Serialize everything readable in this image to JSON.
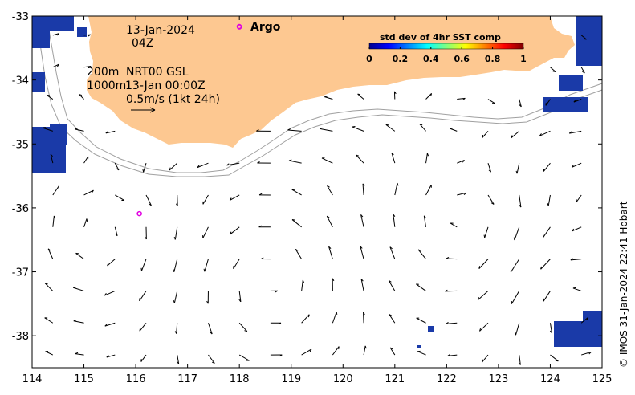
{
  "map": {
    "x_ticks": [
      "114",
      "115",
      "116",
      "117",
      "118",
      "119",
      "120",
      "121",
      "122",
      "123",
      "124",
      "125"
    ],
    "y_ticks": [
      "-33",
      "-34",
      "-35",
      "-36",
      "-37",
      "-38"
    ],
    "xlim": [
      114,
      125
    ],
    "ylim": [
      -38.5,
      -33
    ]
  },
  "annotations": {
    "date": "13-Jan-2024",
    "time": "04Z",
    "contour_shallow": "200m",
    "contour_deep": "1000m",
    "product": "NRT00 GSL",
    "product_time": "13-Jan 00:00Z",
    "scale_label": "0.5m/s (1kt 24h)"
  },
  "legend": {
    "argo_label": "Argo",
    "argo_color": "#e000e0"
  },
  "colorbar": {
    "title": "std dev of 4hr SST comp",
    "ticks": [
      "0",
      "0.2",
      "0.4",
      "0.6",
      "0.8",
      "1"
    ],
    "colors": [
      "#00008f",
      "#0000ff",
      "#0080ff",
      "#00ffff",
      "#80ff80",
      "#ffff00",
      "#ff8000",
      "#ff0000",
      "#800000"
    ]
  },
  "credit": "© IMOS 31-Jan-2024 22:41 Hobart",
  "colors": {
    "land": "#fdc891",
    "sst_patch": "#1a3aa8",
    "contour": "#a0a0a0"
  },
  "argo_floats": [
    {
      "lon": 118.0,
      "lat": -33.17
    },
    {
      "lon": 116.07,
      "lat": -36.09
    }
  ]
}
